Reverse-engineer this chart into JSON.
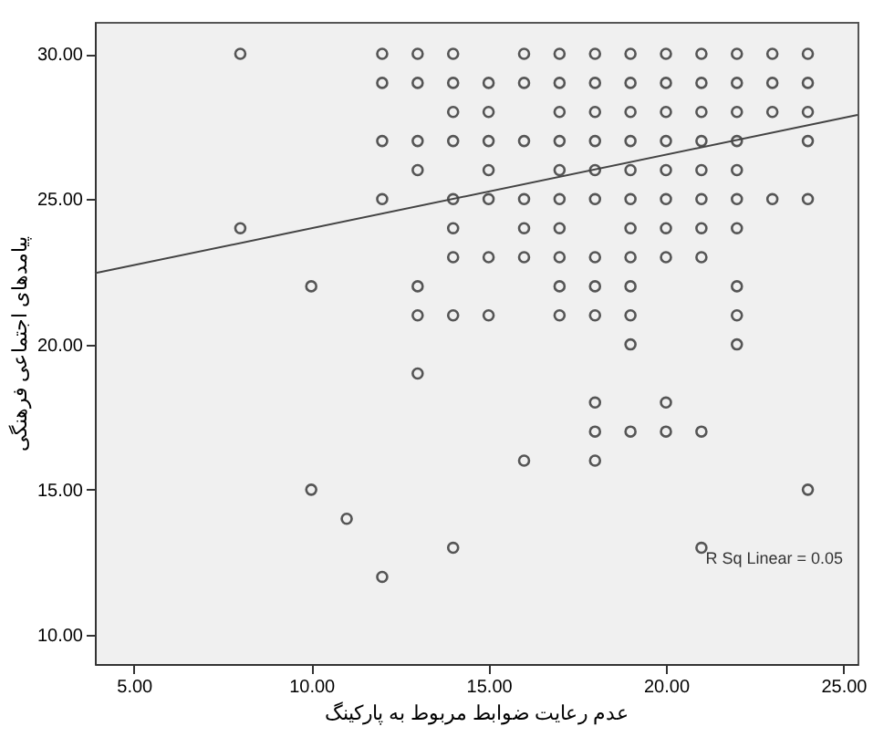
{
  "chart_data": {
    "type": "scatter",
    "xlabel": "عدم رعایت ضوابط مربوط به پارکینگ",
    "ylabel": "پیامدهای اجتماعی فرهنگی",
    "annotations": [
      "R Sq Linear = 0.05"
    ],
    "xlim": [
      3.9,
      25.4
    ],
    "ylim": [
      9,
      31.1
    ],
    "xticks": [
      {
        "value": 5,
        "label": "5.00"
      },
      {
        "value": 10,
        "label": "10.00"
      },
      {
        "value": 15,
        "label": "15.00"
      },
      {
        "value": 20,
        "label": "20.00"
      },
      {
        "value": 25,
        "label": "25.00"
      }
    ],
    "yticks": [
      {
        "value": 10,
        "label": "10.00"
      },
      {
        "value": 15,
        "label": "15.00"
      },
      {
        "value": 20,
        "label": "20.00"
      },
      {
        "value": 25,
        "label": "25.00"
      },
      {
        "value": 30,
        "label": "30.00"
      }
    ],
    "grid": false,
    "series": [
      {
        "marker": "circle",
        "color": "#555555",
        "x": [
          8,
          8,
          10,
          10,
          11,
          12,
          12,
          12,
          12,
          12,
          13,
          13,
          13,
          13,
          13,
          13,
          13,
          14,
          14,
          14,
          14,
          14,
          14,
          14,
          14,
          14,
          15,
          15,
          15,
          15,
          15,
          15,
          15,
          16,
          16,
          16,
          16,
          16,
          16,
          16,
          17,
          17,
          17,
          17,
          17,
          17,
          17,
          17,
          17,
          17,
          18,
          18,
          18,
          18,
          18,
          18,
          18,
          18,
          18,
          18,
          18,
          18,
          19,
          19,
          19,
          19,
          19,
          19,
          19,
          19,
          19,
          19,
          19,
          19,
          20,
          20,
          20,
          20,
          20,
          20,
          20,
          20,
          20,
          20,
          21,
          21,
          21,
          21,
          21,
          21,
          21,
          21,
          21,
          21,
          22,
          22,
          22,
          22,
          22,
          22,
          22,
          22,
          22,
          22,
          23,
          23,
          23,
          23,
          24,
          24,
          24,
          24,
          24,
          24
        ],
        "values": [
          30,
          24,
          22,
          15,
          14,
          30,
          29,
          27,
          25,
          12,
          30,
          29,
          27,
          26,
          22,
          21,
          19,
          30,
          29,
          28,
          27,
          25,
          24,
          23,
          21,
          13,
          29,
          28,
          27,
          26,
          25,
          23,
          21,
          30,
          29,
          27,
          25,
          24,
          23,
          16,
          30,
          29,
          28,
          27,
          26,
          25,
          24,
          23,
          22,
          21,
          30,
          29,
          28,
          27,
          26,
          25,
          23,
          22,
          21,
          18,
          17,
          16,
          30,
          29,
          28,
          27,
          26,
          25,
          24,
          23,
          22,
          21,
          20,
          17,
          30,
          29,
          28,
          27,
          26,
          25,
          24,
          23,
          18,
          17,
          30,
          29,
          28,
          27,
          26,
          25,
          24,
          23,
          17,
          13,
          30,
          29,
          28,
          27,
          26,
          25,
          24,
          22,
          21,
          20,
          30,
          29,
          28,
          25,
          30,
          29,
          28,
          27,
          25,
          15
        ]
      },
      {
        "type": "line",
        "color": "#444444",
        "line_style": "solid",
        "x": [
          3.9,
          25.4
        ],
        "values": [
          22.45,
          27.9
        ]
      }
    ]
  }
}
